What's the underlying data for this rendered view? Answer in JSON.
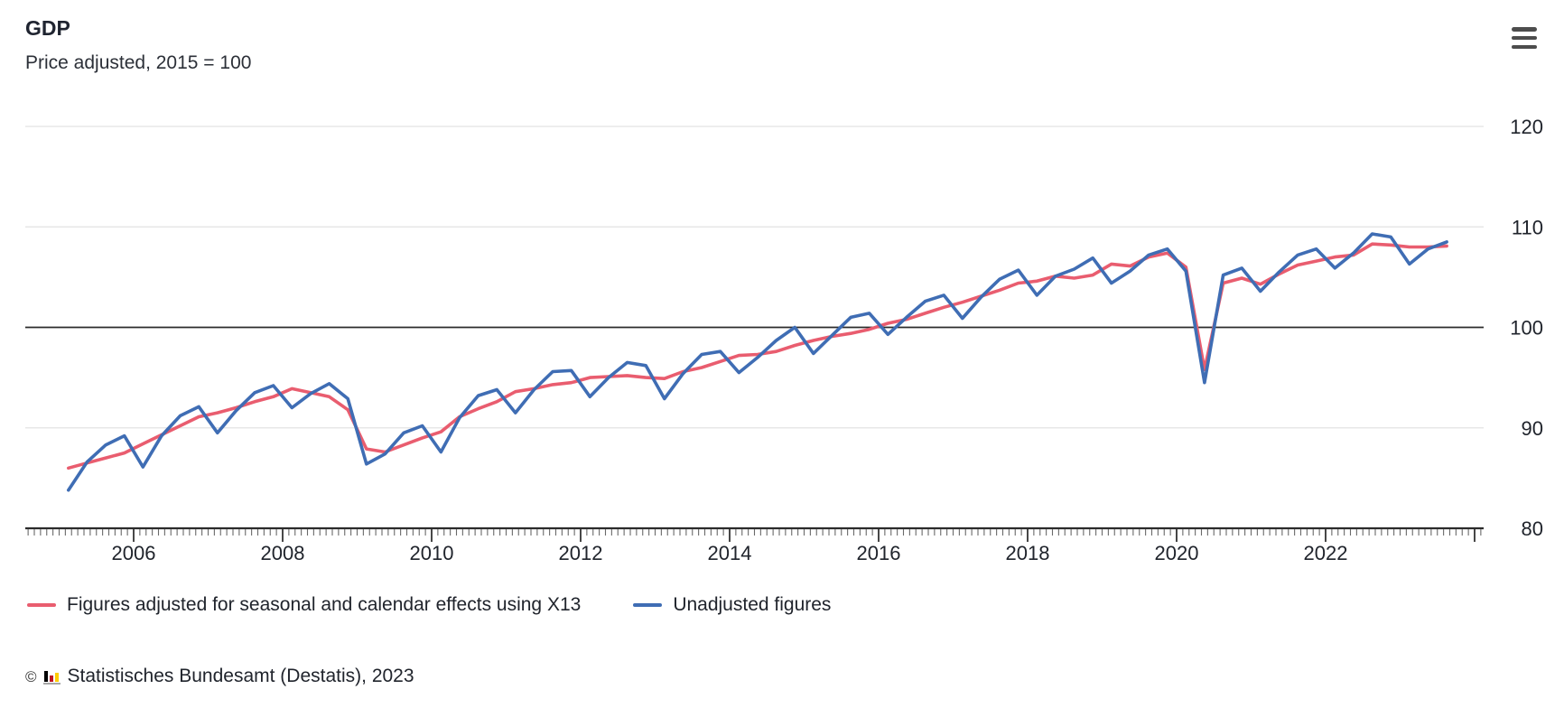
{
  "header": {
    "title": "GDP",
    "subtitle": "Price adjusted, 2015 = 100"
  },
  "menu": {
    "icon": "hamburger-menu-icon"
  },
  "chart_data": {
    "type": "line",
    "title": "GDP",
    "subtitle": "Price adjusted, 2015 = 100",
    "x_unit": "quarter",
    "x_start": "2005-Q1",
    "x_end": "2023-Q3",
    "x_tick_labels": [
      "2006",
      "2008",
      "2010",
      "2012",
      "2014",
      "2016",
      "2018",
      "2020",
      "2022"
    ],
    "y_ticks": [
      "80",
      "90",
      "100",
      "110",
      "120"
    ],
    "y_tick_values": [
      80,
      90,
      100,
      110,
      120
    ],
    "ylim": [
      80,
      123
    ],
    "grid_values": [
      90,
      110,
      120
    ],
    "baseline_value": 100,
    "axis_bottom_value": 80,
    "grid_color": "#e7e7e7",
    "baseline_color": "#2b2b2b",
    "axis_color": "#2b2b2b",
    "tick_color": "#6a6a6a",
    "major_tick_color": "#333333",
    "label_color": "#20242c",
    "legend_position": "bottom",
    "series": [
      {
        "name": "Figures adjusted for seasonal and calendar effects using X13",
        "color": "#e95d6f",
        "values": [
          86.0,
          86.5,
          87.0,
          87.5,
          88.4,
          89.3,
          90.2,
          91.1,
          91.5,
          92.0,
          92.6,
          93.1,
          93.9,
          93.5,
          93.1,
          91.8,
          87.9,
          87.6,
          88.3,
          89.0,
          89.6,
          91.1,
          91.9,
          92.6,
          93.6,
          93.9,
          94.3,
          94.5,
          95.0,
          95.1,
          95.2,
          95.0,
          94.9,
          95.6,
          96.0,
          96.6,
          97.2,
          97.3,
          97.6,
          98.2,
          98.7,
          99.1,
          99.4,
          99.8,
          100.4,
          100.8,
          101.4,
          102.0,
          102.5,
          103.1,
          103.7,
          104.4,
          104.6,
          105.1,
          104.9,
          105.2,
          106.3,
          106.1,
          107.0,
          107.4,
          106.0,
          95.8,
          104.4,
          104.9,
          104.3,
          105.3,
          106.2,
          106.6,
          107.0,
          107.2,
          108.3,
          108.2,
          108.0,
          108.0,
          108.1
        ]
      },
      {
        "name": "Unadjusted figures",
        "color": "#3f6db4",
        "values": [
          83.8,
          86.6,
          88.3,
          89.2,
          86.1,
          89.2,
          91.2,
          92.1,
          89.5,
          91.7,
          93.5,
          94.2,
          92.0,
          93.4,
          94.4,
          92.9,
          86.4,
          87.4,
          89.5,
          90.2,
          87.6,
          91.0,
          93.2,
          93.8,
          91.5,
          93.8,
          95.6,
          95.7,
          93.1,
          95.0,
          96.5,
          96.2,
          92.9,
          95.4,
          97.3,
          97.6,
          95.5,
          97.0,
          98.7,
          100.0,
          97.4,
          99.2,
          101.0,
          101.4,
          99.3,
          101.0,
          102.6,
          103.2,
          100.9,
          103.0,
          104.8,
          105.7,
          103.2,
          105.1,
          105.8,
          106.9,
          104.4,
          105.6,
          107.2,
          107.8,
          105.6,
          94.5,
          105.2,
          105.9,
          103.6,
          105.5,
          107.2,
          107.8,
          105.9,
          107.4,
          109.3,
          109.0,
          106.3,
          107.8,
          108.5
        ]
      }
    ]
  },
  "legend": {
    "items": [
      {
        "label": "Figures adjusted for seasonal and calendar effects using X13",
        "color": "#e95d6f"
      },
      {
        "label": "Unadjusted figures",
        "color": "#3f6db4"
      }
    ]
  },
  "footer": {
    "copyright": "©",
    "logo": "destatis-bar-chart-logo",
    "source": "Statistisches Bundesamt (Destatis), 2023"
  }
}
